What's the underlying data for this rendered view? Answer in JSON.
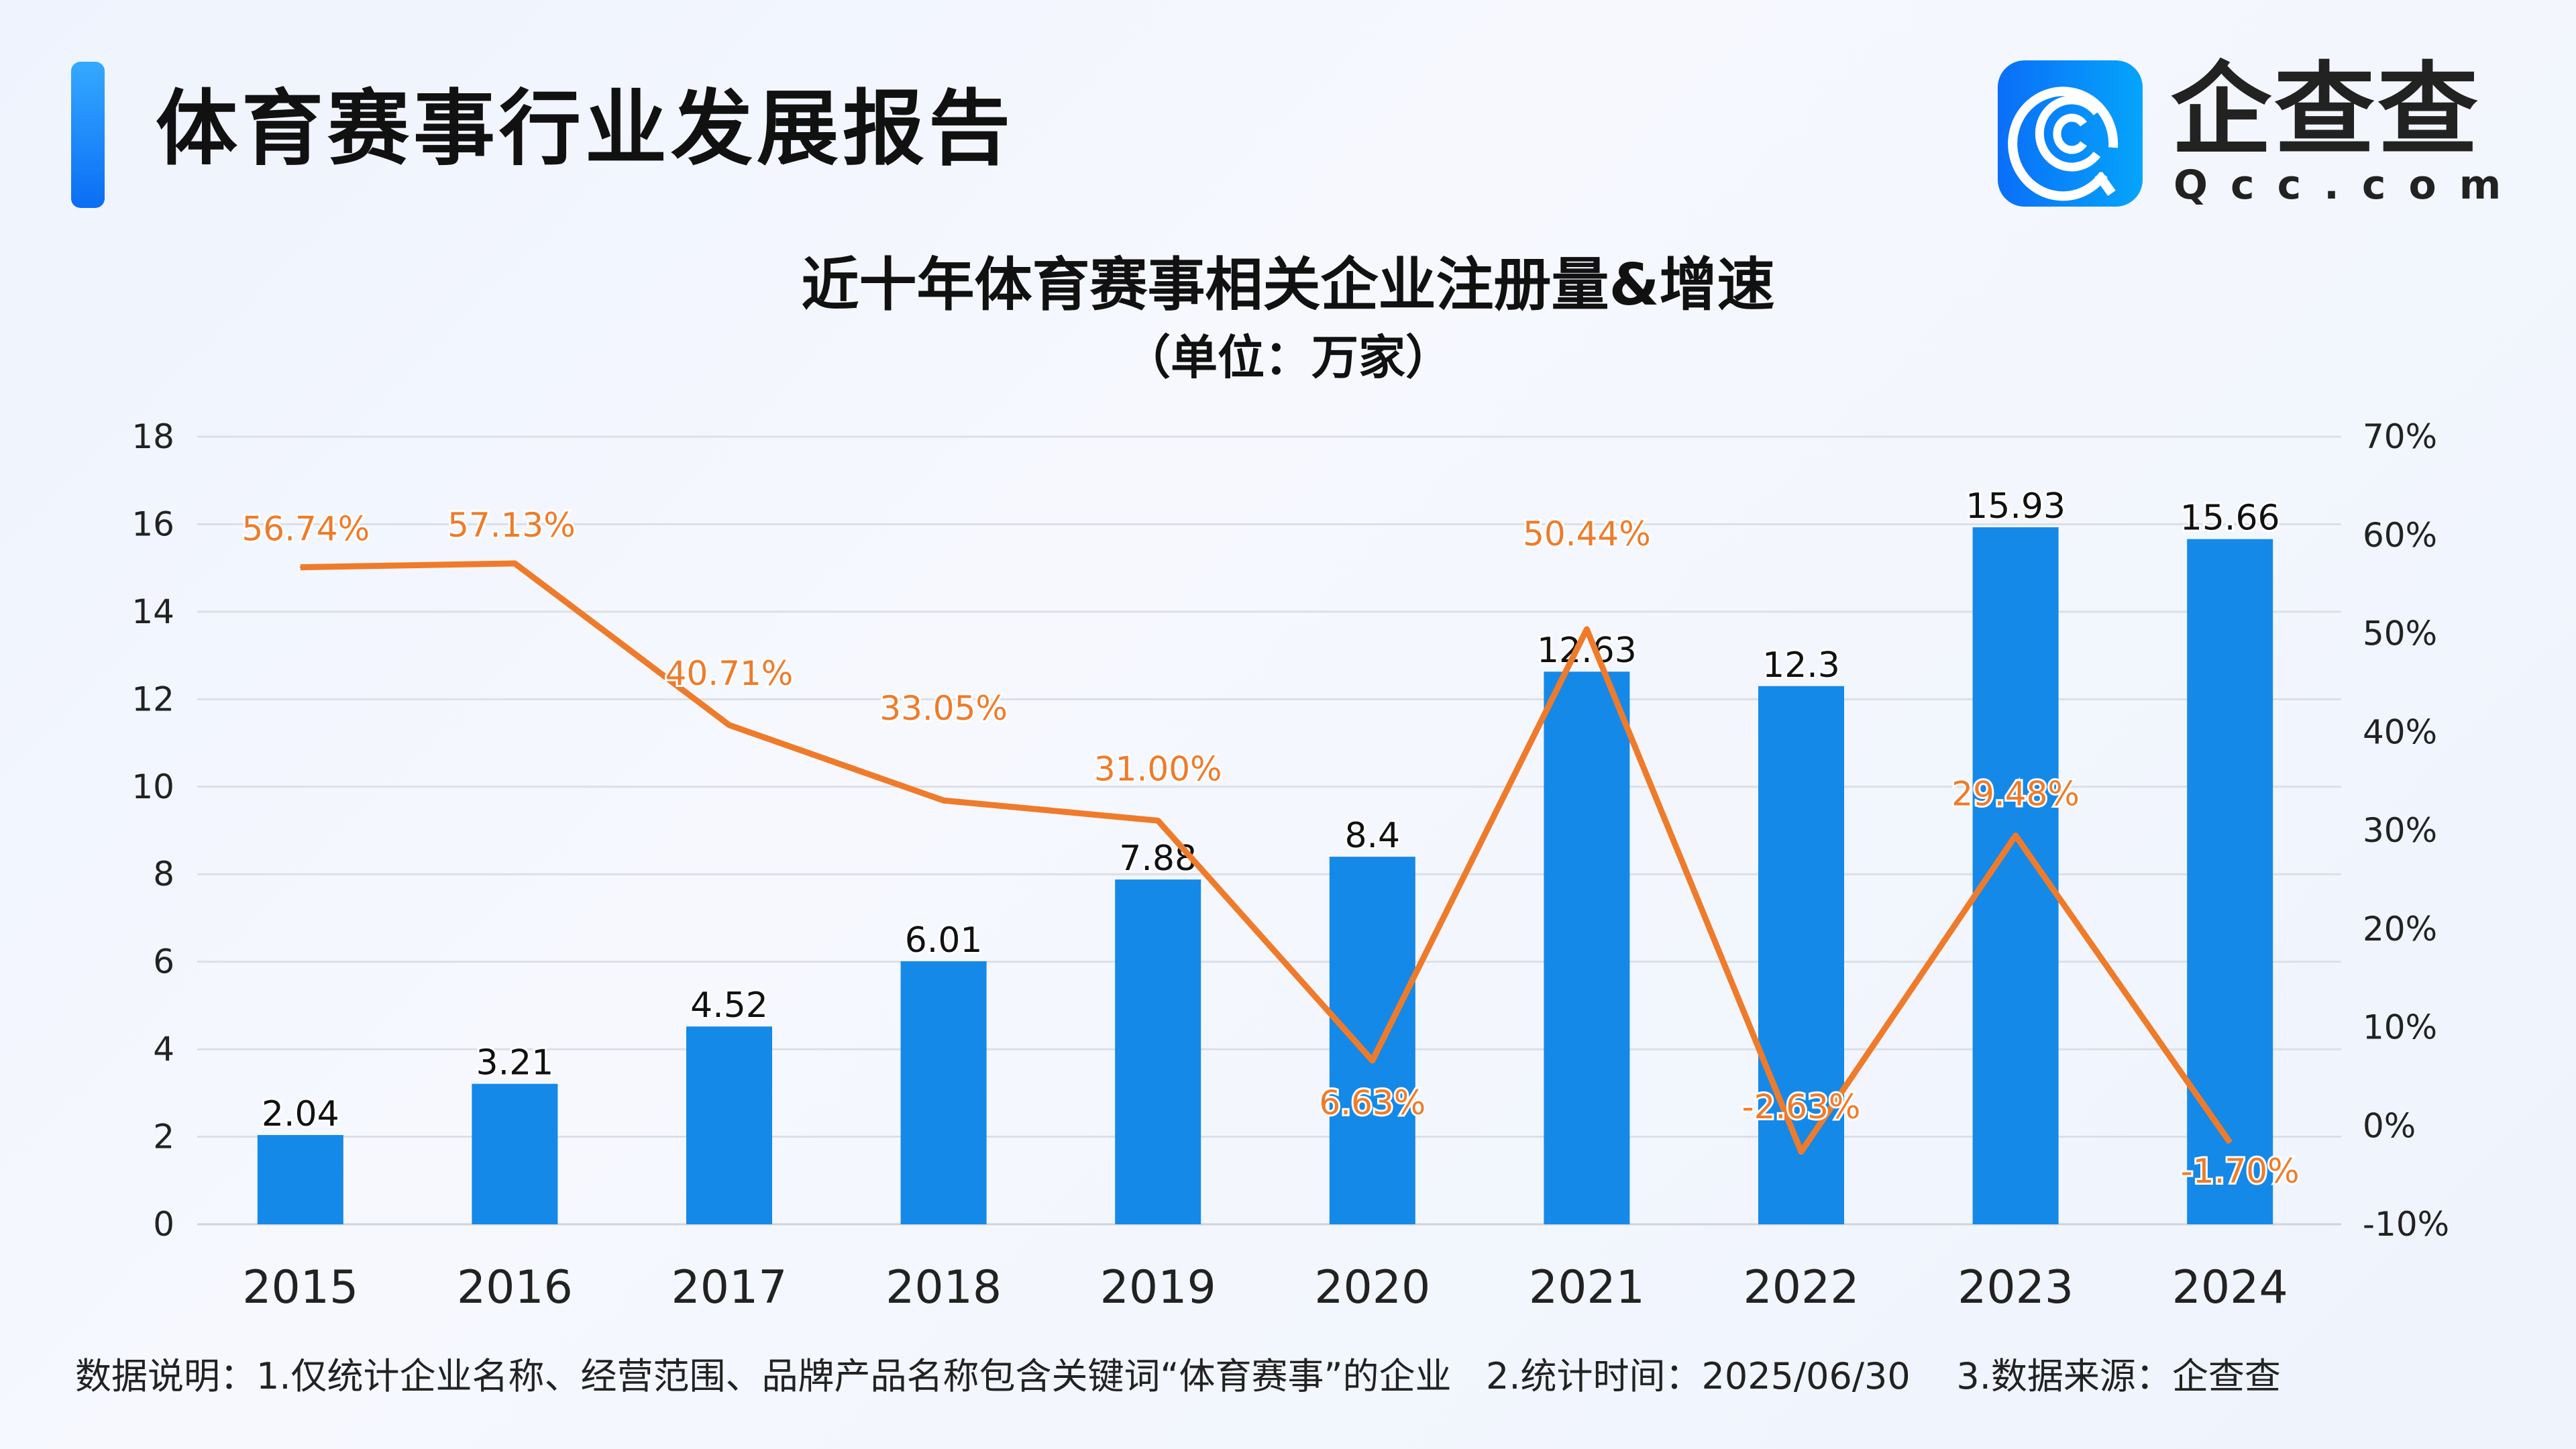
{
  "header": {
    "title": "体育赛事行业发展报告"
  },
  "logo": {
    "text_cn": "企查查",
    "text_en": "Qcc.com",
    "icon": "qcc-logo-icon"
  },
  "footer": {
    "note": "数据说明：1.仅统计企业名称、经营范围、品牌产品名称包含关键词“体育赛事”的企业   2.统计时间：2025/06/30    3.数据来源：企查查"
  },
  "colors": {
    "bar": "#1589e8",
    "line": "#ef7b2a",
    "accent": "#1a86f5"
  },
  "chart_data": {
    "type": "bar+line",
    "title": "近十年体育赛事相关企业注册量&增速",
    "subtitle": "（单位：万家）",
    "categories": [
      "2015",
      "2016",
      "2017",
      "2018",
      "2019",
      "2020",
      "2021",
      "2022",
      "2023",
      "2024"
    ],
    "series": [
      {
        "type": "bar",
        "axis": "left",
        "values": [
          2.04,
          3.21,
          4.52,
          6.01,
          7.88,
          8.4,
          12.63,
          12.3,
          15.93,
          15.66
        ],
        "labels": [
          "2.04",
          "3.21",
          "4.52",
          "6.01",
          "7.88",
          "8.4",
          "12.63",
          "12.3",
          "15.93",
          "15.66"
        ]
      },
      {
        "type": "line",
        "axis": "right",
        "values": [
          56.74,
          57.13,
          40.71,
          33.05,
          31.0,
          6.63,
          50.44,
          -2.63,
          29.48,
          -1.7
        ],
        "labels": [
          "56.74%",
          "57.13%",
          "40.71%",
          "33.05%",
          "31.00%",
          "6.63%",
          "50.44%",
          "-2.63%",
          "29.48%",
          "-1.70%"
        ]
      }
    ],
    "y_left": {
      "range": [
        0,
        18
      ],
      "ticks": [
        "0",
        "2",
        "4",
        "6",
        "8",
        "10",
        "12",
        "14",
        "16",
        "18"
      ]
    },
    "y_right": {
      "range": [
        -10,
        70
      ],
      "ticks": [
        "-10%",
        "0%",
        "10%",
        "20%",
        "30%",
        "40%",
        "50%",
        "60%",
        "70%"
      ]
    },
    "grid": true,
    "legend": "none"
  }
}
